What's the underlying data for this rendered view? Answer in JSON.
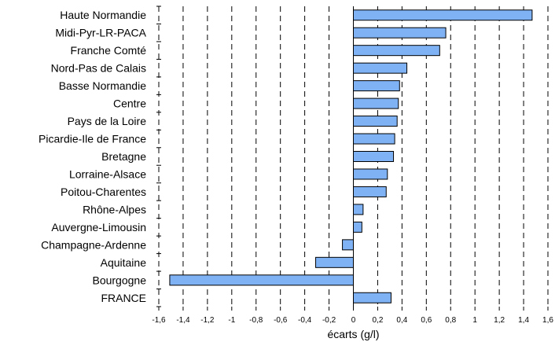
{
  "chart_data": {
    "type": "bar",
    "orientation": "horizontal",
    "title": "",
    "xlabel": "écarts (g/l)",
    "ylabel": "",
    "xlim": [
      -1.6,
      1.6
    ],
    "xticks": [
      "-1,6",
      "-1,4",
      "-1,2",
      "-1",
      "-0,8",
      "-0,6",
      "-0,4",
      "-0,2",
      "0",
      "0,2",
      "0,4",
      "0,6",
      "0,8",
      "1",
      "1,2",
      "1,4",
      "1,6"
    ],
    "grid": "vertical dashed",
    "bar_color": "#7fb2f5",
    "categories": [
      "Haute Normandie",
      "Midi-Pyr-LR-PACA",
      "Franche Comté",
      "Nord-Pas de Calais",
      "Basse Normandie",
      "Centre",
      "Pays de la Loire",
      "Picardie-Ile de France",
      "Bretagne",
      "Lorraine-Alsace",
      "Poitou-Charentes",
      "Rhône-Alpes",
      "Auvergne-Limousin",
      "Champagne-Ardenne",
      "Aquitaine",
      "Bourgogne",
      "FRANCE"
    ],
    "values": [
      1.47,
      0.76,
      0.71,
      0.44,
      0.38,
      0.37,
      0.36,
      0.34,
      0.33,
      0.28,
      0.27,
      0.08,
      0.07,
      -0.09,
      -0.31,
      -1.51,
      0.31
    ]
  }
}
